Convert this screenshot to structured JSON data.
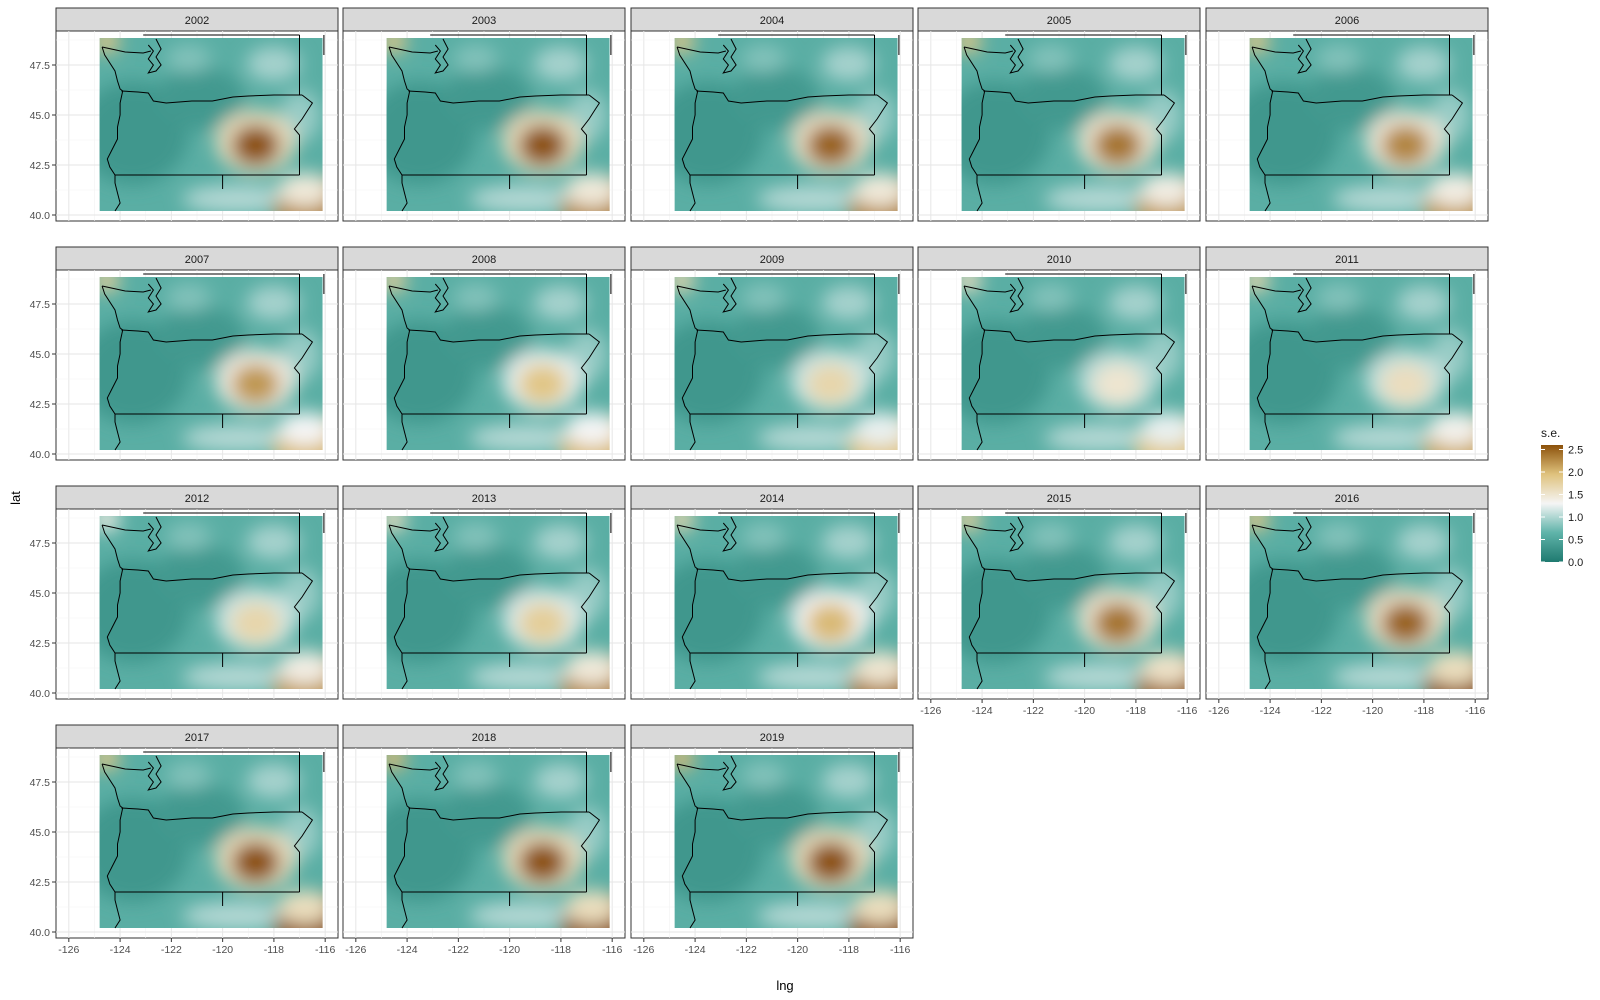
{
  "chart_data": {
    "type": "heatmap",
    "title": "",
    "xlabel": "lng",
    "ylabel": "lat",
    "xlim": [
      -126.5,
      -115.5
    ],
    "ylim": [
      39.7,
      49.2
    ],
    "x_ticks": [
      -126,
      -124,
      -122,
      -120,
      -118,
      -116
    ],
    "y_ticks": [
      40.0,
      42.5,
      45.0,
      47.5
    ],
    "x_tick_labels": [
      "-126",
      "-124",
      "-122",
      "-120",
      "-118",
      "-116"
    ],
    "y_tick_labels": [
      "40.0",
      "42.5",
      "45.0",
      "47.5"
    ],
    "grid": true,
    "facets": [
      "2002",
      "2003",
      "2004",
      "2005",
      "2006",
      "2007",
      "2008",
      "2009",
      "2010",
      "2011",
      "2012",
      "2013",
      "2014",
      "2015",
      "2016",
      "2017",
      "2018",
      "2019"
    ],
    "facet_columns": 5,
    "legend": {
      "title": "s.e.",
      "position": "right",
      "breaks": [
        0.0,
        0.5,
        1.0,
        1.5,
        2.0,
        2.5
      ],
      "labels": [
        "0.0",
        "0.5",
        "1.0",
        "1.5",
        "2.0",
        "2.5"
      ],
      "range": [
        0,
        2.6
      ],
      "colors": [
        "#1f7a70",
        "#5fb3a9",
        "#f5f5f5",
        "#dfc27d",
        "#8c510a"
      ]
    },
    "hotspots": {
      "2002": {
        "east_oregon_peak": 2.6,
        "southeast_corner": 2.3,
        "northwest_corner": 1.9
      },
      "2003": {
        "east_oregon_peak": 2.6,
        "southeast_corner": 2.3,
        "northwest_corner": 1.9
      },
      "2004": {
        "east_oregon_peak": 2.5,
        "southeast_corner": 2.3,
        "northwest_corner": 1.9
      },
      "2005": {
        "east_oregon_peak": 2.4,
        "southeast_corner": 2.2,
        "northwest_corner": 1.9
      },
      "2006": {
        "east_oregon_peak": 2.3,
        "southeast_corner": 2.2,
        "northwest_corner": 1.9
      },
      "2007": {
        "east_oregon_peak": 2.2,
        "southeast_corner": 2.0,
        "northwest_corner": 1.8
      },
      "2008": {
        "east_oregon_peak": 1.9,
        "southeast_corner": 2.0,
        "northwest_corner": 1.8
      },
      "2009": {
        "east_oregon_peak": 1.7,
        "southeast_corner": 1.9,
        "northwest_corner": 1.7
      },
      "2010": {
        "east_oregon_peak": 1.5,
        "southeast_corner": 1.9,
        "northwest_corner": 1.6
      },
      "2011": {
        "east_oregon_peak": 1.6,
        "southeast_corner": 2.1,
        "northwest_corner": 1.7
      },
      "2012": {
        "east_oregon_peak": 1.7,
        "southeast_corner": 2.2,
        "northwest_corner": 1.4
      },
      "2013": {
        "east_oregon_peak": 1.8,
        "southeast_corner": 2.3,
        "northwest_corner": 1.6
      },
      "2014": {
        "east_oregon_peak": 2.0,
        "southeast_corner": 2.4,
        "northwest_corner": 1.7
      },
      "2015": {
        "east_oregon_peak": 2.4,
        "southeast_corner": 2.5,
        "northwest_corner": 1.8
      },
      "2016": {
        "east_oregon_peak": 2.5,
        "southeast_corner": 2.6,
        "northwest_corner": 1.9
      },
      "2017": {
        "east_oregon_peak": 2.6,
        "southeast_corner": 2.6,
        "northwest_corner": 1.9
      },
      "2018": {
        "east_oregon_peak": 2.6,
        "southeast_corner": 2.6,
        "northwest_corner": 2.0
      },
      "2019": {
        "east_oregon_peak": 2.6,
        "southeast_corner": 2.6,
        "northwest_corner": 2.0
      }
    }
  }
}
